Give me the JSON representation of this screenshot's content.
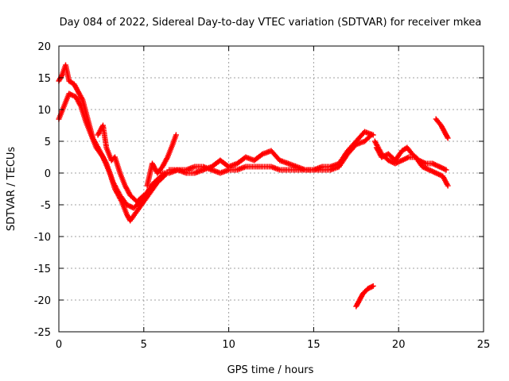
{
  "chart_data": {
    "type": "scatter",
    "title": "Day 084 of 2022, Sidereal Day-to-day VTEC variation (SDTVAR) for receiver mkea",
    "xlabel": "GPS time / hours",
    "ylabel": "SDTVAR / TECUs",
    "xlim": [
      0,
      25
    ],
    "ylim": [
      -25,
      20
    ],
    "xticks": [
      "0",
      "5",
      "10",
      "15",
      "20",
      "25"
    ],
    "yticks": [
      "20",
      "15",
      "10",
      "5",
      "0",
      "-5",
      "-10",
      "-15",
      "-20",
      "-25"
    ],
    "grid": true,
    "marker": "+",
    "color": "#ff0000",
    "series": [
      {
        "name": "trace-a",
        "points": [
          [
            0.0,
            14.5
          ],
          [
            0.2,
            15.5
          ],
          [
            0.4,
            17.0
          ],
          [
            0.6,
            14.5
          ],
          [
            0.9,
            14.0
          ],
          [
            1.1,
            13.0
          ],
          [
            1.4,
            11.5
          ],
          [
            1.7,
            8.5
          ],
          [
            2.0,
            5.5
          ],
          [
            2.4,
            3.5
          ],
          [
            2.8,
            1.5
          ],
          [
            3.2,
            -1.5
          ],
          [
            3.6,
            -3.5
          ],
          [
            4.0,
            -5.0
          ],
          [
            4.4,
            -5.5
          ],
          [
            4.8,
            -4.5
          ],
          [
            5.2,
            -3.0
          ],
          [
            5.6,
            -1.5
          ],
          [
            6.0,
            -0.5
          ],
          [
            6.4,
            0.0
          ]
        ]
      },
      {
        "name": "trace-b",
        "points": [
          [
            0.0,
            8.5
          ],
          [
            0.3,
            10.5
          ],
          [
            0.6,
            12.5
          ],
          [
            1.0,
            12.0
          ],
          [
            1.3,
            10.5
          ],
          [
            1.6,
            8.0
          ],
          [
            1.9,
            6.0
          ],
          [
            2.2,
            4.0
          ],
          [
            2.6,
            2.5
          ],
          [
            3.0,
            0.0
          ],
          [
            3.3,
            -2.5
          ],
          [
            3.7,
            -4.5
          ],
          [
            4.0,
            -6.5
          ],
          [
            4.2,
            -7.5
          ],
          [
            4.6,
            -6.0
          ],
          [
            5.0,
            -4.5
          ],
          [
            5.4,
            -3.0
          ],
          [
            5.8,
            -1.5
          ],
          [
            6.2,
            -0.5
          ]
        ]
      },
      {
        "name": "trace-c",
        "points": [
          [
            2.3,
            6.0
          ],
          [
            2.6,
            7.5
          ],
          [
            2.8,
            4.0
          ],
          [
            3.1,
            2.0
          ],
          [
            3.3,
            2.5
          ],
          [
            3.6,
            0.0
          ],
          [
            3.9,
            -2.0
          ],
          [
            4.2,
            -3.5
          ],
          [
            4.6,
            -4.5
          ],
          [
            5.0,
            -3.5
          ]
        ]
      },
      {
        "name": "trace-d",
        "points": [
          [
            5.2,
            -2.0
          ],
          [
            5.5,
            1.5
          ],
          [
            5.8,
            0.0
          ],
          [
            6.1,
            1.0
          ],
          [
            6.4,
            2.5
          ],
          [
            6.7,
            4.5
          ],
          [
            6.9,
            6.0
          ]
        ]
      },
      {
        "name": "trace-e",
        "points": [
          [
            6.5,
            0.5
          ],
          [
            7.0,
            0.5
          ],
          [
            7.5,
            0.5
          ],
          [
            8.0,
            1.0
          ],
          [
            8.5,
            1.0
          ],
          [
            9.0,
            0.5
          ],
          [
            9.5,
            0.0
          ],
          [
            10.0,
            0.5
          ],
          [
            10.5,
            0.5
          ],
          [
            11.0,
            1.0
          ],
          [
            11.5,
            1.0
          ],
          [
            12.0,
            1.0
          ],
          [
            12.5,
            1.0
          ],
          [
            13.0,
            0.5
          ],
          [
            13.5,
            0.5
          ],
          [
            14.0,
            0.5
          ],
          [
            14.5,
            0.5
          ],
          [
            15.0,
            0.5
          ],
          [
            15.5,
            0.5
          ],
          [
            16.0,
            0.5
          ],
          [
            16.5,
            1.0
          ],
          [
            17.0,
            3.0
          ],
          [
            17.5,
            4.5
          ],
          [
            18.0,
            5.0
          ],
          [
            18.4,
            6.0
          ]
        ]
      },
      {
        "name": "trace-f",
        "points": [
          [
            6.0,
            0.0
          ],
          [
            6.5,
            0.0
          ],
          [
            7.0,
            0.5
          ],
          [
            7.5,
            0.0
          ],
          [
            8.0,
            0.0
          ],
          [
            8.5,
            0.5
          ],
          [
            9.0,
            1.0
          ],
          [
            9.5,
            2.0
          ],
          [
            10.0,
            1.0
          ],
          [
            10.5,
            1.5
          ],
          [
            11.0,
            2.5
          ],
          [
            11.5,
            2.0
          ],
          [
            12.0,
            3.0
          ],
          [
            12.5,
            3.5
          ],
          [
            13.0,
            2.0
          ],
          [
            13.5,
            1.5
          ],
          [
            14.0,
            1.0
          ],
          [
            14.5,
            0.5
          ],
          [
            15.0,
            0.5
          ],
          [
            15.5,
            1.0
          ],
          [
            16.0,
            1.0
          ],
          [
            16.5,
            1.5
          ],
          [
            17.0,
            3.5
          ],
          [
            17.5,
            5.0
          ],
          [
            18.0,
            6.5
          ],
          [
            18.5,
            6.0
          ]
        ]
      },
      {
        "name": "trace-g",
        "points": [
          [
            18.6,
            5.0
          ],
          [
            19.0,
            3.0
          ],
          [
            19.4,
            2.0
          ],
          [
            19.8,
            1.5
          ],
          [
            20.2,
            2.0
          ],
          [
            20.6,
            2.5
          ],
          [
            21.0,
            2.5
          ],
          [
            21.4,
            1.0
          ],
          [
            21.8,
            0.5
          ],
          [
            22.2,
            0.0
          ],
          [
            22.6,
            -0.5
          ],
          [
            22.9,
            -2.0
          ]
        ]
      },
      {
        "name": "trace-h",
        "points": [
          [
            18.7,
            4.0
          ],
          [
            19.0,
            2.5
          ],
          [
            19.4,
            3.0
          ],
          [
            19.8,
            2.0
          ],
          [
            20.2,
            3.5
          ],
          [
            20.5,
            4.0
          ],
          [
            20.8,
            3.0
          ],
          [
            21.2,
            2.0
          ],
          [
            21.6,
            1.5
          ],
          [
            22.0,
            1.5
          ],
          [
            22.4,
            1.0
          ],
          [
            22.8,
            0.5
          ]
        ]
      },
      {
        "name": "trace-i",
        "points": [
          [
            22.2,
            8.5
          ],
          [
            22.5,
            7.5
          ],
          [
            22.7,
            6.5
          ],
          [
            22.9,
            5.5
          ]
        ]
      },
      {
        "name": "trace-j",
        "points": [
          [
            17.5,
            -21.0
          ],
          [
            17.7,
            -20.0
          ],
          [
            17.9,
            -19.0
          ],
          [
            18.2,
            -18.2
          ],
          [
            18.5,
            -17.8
          ]
        ]
      }
    ]
  }
}
